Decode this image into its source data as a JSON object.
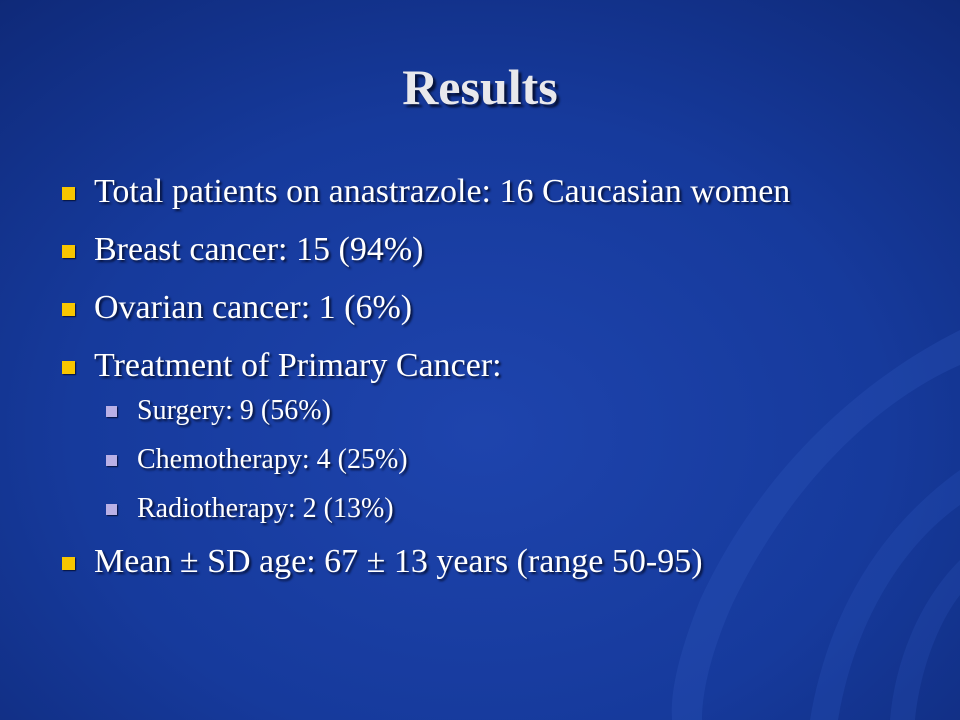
{
  "slide": {
    "title": "Results",
    "bullets": [
      {
        "text": "Total patients on anastrazole: 16 Caucasian women"
      },
      {
        "text": "Breast cancer: 15 (94%)"
      },
      {
        "text": "Ovarian cancer: 1 (6%)"
      },
      {
        "text": "Treatment of Primary Cancer:",
        "sub_items": [
          "Surgery: 9 (56%)",
          "Chemotherapy: 4 (25%)",
          "Radiotherapy: 2 (13%)"
        ]
      },
      {
        "text": "Mean ± SD age: 67 ± 13 years (range 50-95)"
      }
    ]
  },
  "colors": {
    "background": "#163a9c",
    "bullet_marker": "#f7c600",
    "sub_bullet_marker": "#b9b0e6",
    "text": "#ffffff"
  }
}
